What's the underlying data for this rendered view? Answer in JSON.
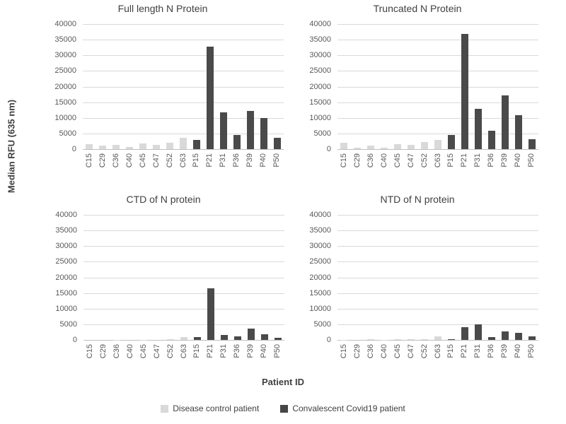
{
  "figure": {
    "y_axis_label": "Median RFU (635 nm)",
    "x_axis_label": "Patient ID"
  },
  "legend": {
    "items": [
      {
        "label": "Disease control patient",
        "color": "#d9d9d9"
      },
      {
        "label": "Convalescent Covid19 patient",
        "color": "#464646"
      }
    ]
  },
  "colors": {
    "control_bar": "#d9d9d9",
    "covid_bar": "#4a4a4a",
    "gridline": "#d9d9d9",
    "axis_line": "#bfbfbf",
    "tick_text": "#595959",
    "title_text": "#404040",
    "background": "#ffffff"
  },
  "chart_data": [
    {
      "type": "bar",
      "title": "Full length N Protein",
      "categories": [
        "C15",
        "C29",
        "C36",
        "C40",
        "C45",
        "C47",
        "C52",
        "C63",
        "P15",
        "P21",
        "P31",
        "P36",
        "P39",
        "P40",
        "P50"
      ],
      "series": [
        {
          "name": "Disease control patient",
          "color": "#d9d9d9",
          "values": [
            1800,
            1400,
            1600,
            900,
            2000,
            1500,
            2200,
            3900,
            null,
            null,
            null,
            null,
            null,
            null,
            null
          ]
        },
        {
          "name": "Convalescent Covid19 patient",
          "color": "#4a4a4a",
          "values": [
            null,
            null,
            null,
            null,
            null,
            null,
            null,
            null,
            3100,
            33000,
            11900,
            4700,
            12400,
            10100,
            3900
          ]
        }
      ],
      "ylim": [
        0,
        40000
      ],
      "y_ticks": [
        0,
        5000,
        10000,
        15000,
        20000,
        25000,
        30000,
        35000,
        40000
      ],
      "grid": true
    },
    {
      "type": "bar",
      "title": "Truncated N Protein",
      "categories": [
        "C15",
        "C29",
        "C36",
        "C40",
        "C45",
        "C47",
        "C52",
        "C63",
        "P15",
        "P21",
        "P31",
        "P36",
        "P39",
        "P40",
        "P50"
      ],
      "series": [
        {
          "name": "Disease control patient",
          "color": "#d9d9d9",
          "values": [
            2200,
            700,
            1300,
            600,
            1800,
            1500,
            2600,
            3200,
            null,
            null,
            null,
            null,
            null,
            null,
            null
          ]
        },
        {
          "name": "Convalescent Covid19 patient",
          "color": "#4a4a4a",
          "values": [
            null,
            null,
            null,
            null,
            null,
            null,
            null,
            null,
            4800,
            37000,
            13000,
            6000,
            17400,
            11000,
            3500
          ]
        }
      ],
      "ylim": [
        0,
        40000
      ],
      "y_ticks": [
        0,
        5000,
        10000,
        15000,
        20000,
        25000,
        30000,
        35000,
        40000
      ],
      "grid": true
    },
    {
      "type": "bar",
      "title": "CTD of N protein",
      "categories": [
        "C15",
        "C29",
        "C36",
        "C40",
        "C45",
        "C47",
        "C52",
        "C63",
        "P15",
        "P21",
        "P31",
        "P36",
        "P39",
        "P40",
        "P50"
      ],
      "series": [
        {
          "name": "Disease control patient",
          "color": "#d9d9d9",
          "values": [
            150,
            150,
            250,
            100,
            250,
            150,
            350,
            1100,
            null,
            null,
            null,
            null,
            null,
            null,
            null
          ]
        },
        {
          "name": "Convalescent Covid19 patient",
          "color": "#4a4a4a",
          "values": [
            null,
            null,
            null,
            null,
            null,
            null,
            null,
            null,
            1200,
            16700,
            1700,
            1400,
            3900,
            2100,
            800
          ]
        }
      ],
      "ylim": [
        0,
        40000
      ],
      "y_ticks": [
        0,
        5000,
        10000,
        15000,
        20000,
        25000,
        30000,
        35000,
        40000
      ],
      "grid": true
    },
    {
      "type": "bar",
      "title": "NTD of N protein",
      "categories": [
        "C15",
        "C29",
        "C36",
        "C40",
        "C45",
        "C47",
        "C52",
        "C63",
        "P15",
        "P21",
        "P31",
        "P36",
        "P39",
        "P40",
        "P50"
      ],
      "series": [
        {
          "name": "Disease control patient",
          "color": "#d9d9d9",
          "values": [
            300,
            100,
            350,
            300,
            450,
            400,
            500,
            1400,
            null,
            null,
            null,
            null,
            null,
            null,
            null
          ]
        },
        {
          "name": "Convalescent Covid19 patient",
          "color": "#4a4a4a",
          "values": [
            null,
            null,
            null,
            null,
            null,
            null,
            null,
            null,
            500,
            4300,
            5100,
            1100,
            2900,
            2500,
            1300
          ]
        }
      ],
      "ylim": [
        0,
        40000
      ],
      "y_ticks": [
        0,
        5000,
        10000,
        15000,
        20000,
        25000,
        30000,
        35000,
        40000
      ],
      "grid": true
    }
  ]
}
